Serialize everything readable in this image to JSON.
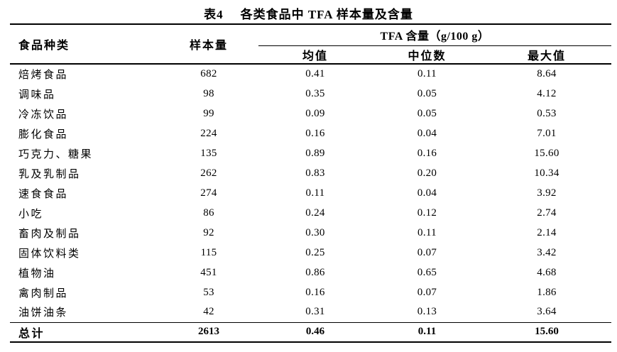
{
  "title": {
    "prefix": "表4",
    "text": "各类食品中 TFA 样本量及含量"
  },
  "table": {
    "headers": {
      "food": "食品种类",
      "sample": "样本量",
      "tfa_group": "TFA 含量（g/100 g）",
      "mean": "均值",
      "median": "中位数",
      "max": "最大值"
    },
    "rows": [
      {
        "food": "焙烤食品",
        "sample": "682",
        "mean": "0.41",
        "median": "0.11",
        "max": "8.64"
      },
      {
        "food": "调味品",
        "sample": "98",
        "mean": "0.35",
        "median": "0.05",
        "max": "4.12"
      },
      {
        "food": "冷冻饮品",
        "sample": "99",
        "mean": "0.09",
        "median": "0.05",
        "max": "0.53"
      },
      {
        "food": "膨化食品",
        "sample": "224",
        "mean": "0.16",
        "median": "0.04",
        "max": "7.01"
      },
      {
        "food": "巧克力、糖果",
        "sample": "135",
        "mean": "0.89",
        "median": "0.16",
        "max": "15.60"
      },
      {
        "food": "乳及乳制品",
        "sample": "262",
        "mean": "0.83",
        "median": "0.20",
        "max": "10.34"
      },
      {
        "food": "速食食品",
        "sample": "274",
        "mean": "0.11",
        "median": "0.04",
        "max": "3.92"
      },
      {
        "food": "小吃",
        "sample": "86",
        "mean": "0.24",
        "median": "0.12",
        "max": "2.74"
      },
      {
        "food": "畜肉及制品",
        "sample": "92",
        "mean": "0.30",
        "median": "0.11",
        "max": "2.14"
      },
      {
        "food": "固体饮料类",
        "sample": "115",
        "mean": "0.25",
        "median": "0.07",
        "max": "3.42"
      },
      {
        "food": "植物油",
        "sample": "451",
        "mean": "0.86",
        "median": "0.65",
        "max": "4.68"
      },
      {
        "food": "禽肉制品",
        "sample": "53",
        "mean": "0.16",
        "median": "0.07",
        "max": "1.86"
      },
      {
        "food": "油饼油条",
        "sample": "42",
        "mean": "0.31",
        "median": "0.13",
        "max": "3.64"
      }
    ],
    "total": {
      "food": "总计",
      "sample": "2613",
      "mean": "0.46",
      "median": "0.11",
      "max": "15.60"
    }
  },
  "colors": {
    "text": "#000000",
    "rule": "#000000",
    "background": "#ffffff"
  }
}
